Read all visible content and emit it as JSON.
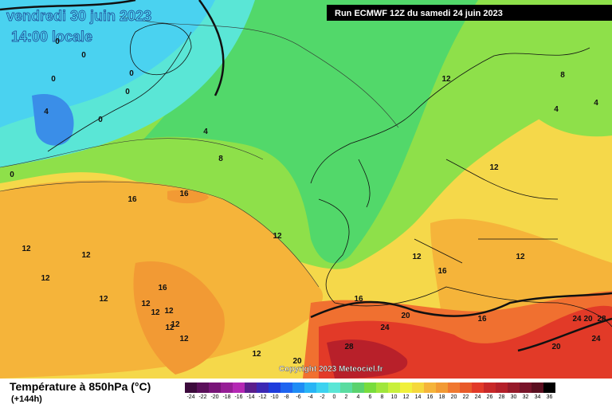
{
  "header": {
    "date": "vendredi 30 juin 2023",
    "time": "14:00 locale",
    "run": "Run ECMWF 12Z du samedi 24 juin 2023"
  },
  "map": {
    "copyright": "Copyright 2023 Meteociel.fr",
    "contour_labels": [
      "0",
      "0",
      "0",
      "0",
      "0",
      "0",
      "4",
      "0",
      "4",
      "8",
      "12",
      "8",
      "4",
      "4",
      "12",
      "16",
      "16",
      "12",
      "12",
      "12",
      "12",
      "12",
      "12",
      "16",
      "16",
      "12",
      "12",
      "12",
      "12",
      "12",
      "12",
      "12",
      "16",
      "20",
      "16",
      "24",
      "24",
      "20",
      "28",
      "24",
      "20",
      "28",
      "12",
      "20"
    ]
  },
  "legend": {
    "title": "Température à 850hPa (°C)",
    "lead": "(+144h)",
    "labels": [
      "-24",
      "-22",
      "-20",
      "-18",
      "-16",
      "-14",
      "-12",
      "-10",
      "-8",
      "-6",
      "-4",
      "-2",
      "0",
      "2",
      "4",
      "6",
      "8",
      "10",
      "12",
      "14",
      "16",
      "18",
      "20",
      "22",
      "24",
      "26",
      "28",
      "30",
      "32",
      "34",
      "36"
    ]
  }
}
